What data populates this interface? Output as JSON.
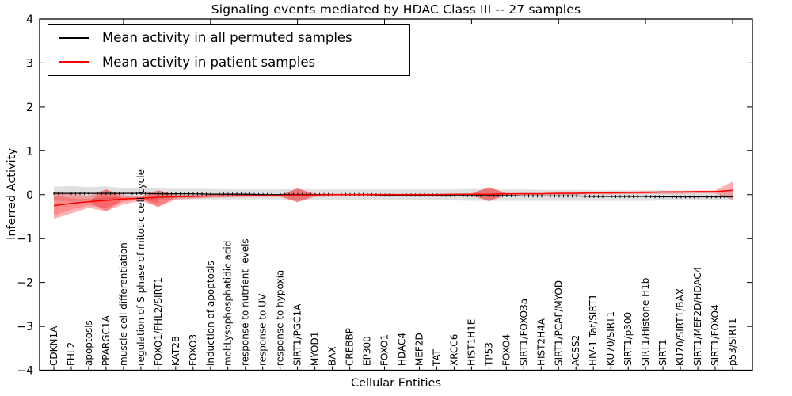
{
  "chart_data": {
    "type": "line",
    "title": "Signaling events mediated by HDAC Class III -- 27 samples",
    "xlabel": "Cellular Entities",
    "ylabel": "Inferred Activity",
    "ylim": [
      -4,
      4
    ],
    "grid": false,
    "legend_position": "upper-left",
    "yticks": [
      {
        "value": 4,
        "label": "4"
      },
      {
        "value": 3,
        "label": "3"
      },
      {
        "value": 2,
        "label": "2"
      },
      {
        "value": 1,
        "label": "1"
      },
      {
        "value": 0,
        "label": "0"
      },
      {
        "value": -1,
        "label": "−1"
      },
      {
        "value": -2,
        "label": "−2"
      },
      {
        "value": -3,
        "label": "−3"
      },
      {
        "value": -4,
        "label": "−4"
      }
    ],
    "categories": [
      "CDKN1A",
      "FHL2",
      "apoptosis",
      "PPARGC1A",
      "muscle cell differentiation",
      "regulation of S phase of mitotic cell cycle",
      "FOXO1/FHL2/SIRT1",
      "KAT2B",
      "FOXO3",
      "induction of apoptosis",
      "mol:Lysophosphatidic acid",
      "response to nutrient levels",
      "response to UV",
      "response to hypoxia",
      "SIRT1/PGC1A",
      "MYOD1",
      "BAX",
      "CREBBP",
      "EP300",
      "FOXO1",
      "HDAC4",
      "MEF2D",
      "TAT",
      "XRCC6",
      "HIST1H1E",
      "TP53",
      "FOXO4",
      "SIRT1/FOXO3a",
      "HIST2H4A",
      "SIRT1/PCAF/MYOD",
      "ACSS2",
      "HIV-1 Tat/SIRT1",
      "KU70/SIRT1",
      "SIRT1/p300",
      "SIRT1/Histone H1b",
      "SIRT1",
      "KU70/SIRT1/BAX",
      "SIRT1/MEF2D/HDAC4",
      "SIRT1/FOXO4",
      "p53/SIRT1"
    ],
    "series": [
      {
        "name": "Mean activity in all permuted samples",
        "color": "#000000",
        "values": [
          0.03,
          0.03,
          0.03,
          0.03,
          0.03,
          0.03,
          0.02,
          0.02,
          0.02,
          0.01,
          0.01,
          0.01,
          0,
          0,
          0,
          0,
          0,
          0,
          0,
          -0.01,
          -0.01,
          -0.01,
          -0.01,
          -0.02,
          -0.02,
          -0.02,
          -0.02,
          -0.03,
          -0.03,
          -0.03,
          -0.03,
          -0.04,
          -0.04,
          -0.04,
          -0.04,
          -0.05,
          -0.05,
          -0.05,
          -0.05,
          -0.05
        ]
      },
      {
        "name": "Mean activity in patient samples",
        "color": "#ff0000",
        "values": [
          -0.25,
          -0.2,
          -0.16,
          -0.13,
          -0.1,
          -0.08,
          -0.06,
          -0.05,
          -0.04,
          -0.03,
          -0.03,
          -0.02,
          -0.02,
          -0.02,
          -0.01,
          -0.01,
          0,
          0,
          0,
          0,
          0,
          0,
          0,
          0.01,
          0.01,
          0.01,
          0.02,
          0.02,
          0.02,
          0.03,
          0.03,
          0.04,
          0.04,
          0.05,
          0.05,
          0.06,
          0.06,
          0.07,
          0.07,
          0.1
        ]
      }
    ],
    "bands": [
      {
        "name": "permuted-samples-band",
        "upper": [
          0.18,
          0.2,
          0.17,
          0.19,
          0.15,
          0.14,
          0.14,
          0.13,
          0.13,
          0.13,
          0.12,
          0.12,
          0.12,
          0.12,
          0.13,
          0.12,
          0.12,
          0.12,
          0.12,
          0.12,
          0.12,
          0.12,
          0.12,
          0.12,
          0.13,
          0.12,
          0.12,
          0.12,
          0.11,
          0.11,
          0.11,
          0.1,
          0.1,
          0.1,
          0.1,
          0.1,
          0.09,
          0.09,
          0.08,
          0.08
        ],
        "lower": [
          -0.13,
          -0.15,
          -0.13,
          -0.15,
          -0.12,
          -0.11,
          -0.12,
          -0.11,
          -0.11,
          -0.11,
          -0.11,
          -0.11,
          -0.11,
          -0.11,
          -0.13,
          -0.12,
          -0.12,
          -0.12,
          -0.12,
          -0.12,
          -0.13,
          -0.13,
          -0.13,
          -0.13,
          -0.14,
          -0.14,
          -0.14,
          -0.14,
          -0.14,
          -0.14,
          -0.14,
          -0.14,
          -0.14,
          -0.14,
          -0.14,
          -0.13,
          -0.13,
          -0.13,
          -0.13,
          -0.12
        ]
      },
      {
        "name": "patient-samples-band",
        "upper": [
          0.06,
          0.02,
          -0.02,
          0.12,
          -0.01,
          -0.03,
          0.1,
          0,
          0,
          0,
          0,
          0,
          0,
          0,
          0.14,
          0.02,
          0.02,
          0.02,
          0.02,
          0.02,
          0.02,
          0.02,
          0.02,
          0.02,
          0.03,
          0.17,
          0.03,
          0.04,
          0.04,
          0.05,
          0.05,
          0.06,
          0.07,
          0.07,
          0.08,
          0.08,
          0.09,
          0.09,
          0.1,
          0.3
        ],
        "lower": [
          -0.55,
          -0.43,
          -0.3,
          -0.38,
          -0.22,
          -0.14,
          -0.28,
          -0.11,
          -0.09,
          -0.07,
          -0.06,
          -0.05,
          -0.05,
          -0.05,
          -0.17,
          -0.05,
          -0.04,
          -0.03,
          -0.03,
          -0.03,
          -0.03,
          -0.03,
          -0.02,
          -0.02,
          -0.02,
          -0.15,
          -0.01,
          -0.01,
          0,
          0,
          0,
          0.01,
          0.01,
          0.01,
          0.02,
          0.02,
          0.02,
          0.03,
          0.03,
          -0.12
        ]
      }
    ],
    "inner_band": {
      "name": "patient-band-dark-left-wedge",
      "upper": [
        -0.02,
        -0.08,
        -0.1,
        -0.06,
        -0.06,
        -0.06,
        -0.04
      ],
      "lower": [
        -0.48,
        -0.34,
        -0.24,
        -0.3,
        -0.16,
        -0.11,
        -0.2
      ]
    },
    "diamonds": [
      {
        "index": 3,
        "top": 0.12,
        "bottom": -0.38
      },
      {
        "index": 6,
        "top": 0.1,
        "bottom": -0.28
      },
      {
        "index": 14,
        "top": 0.14,
        "bottom": -0.17
      },
      {
        "index": 25,
        "top": 0.17,
        "bottom": -0.15
      }
    ],
    "colors": {
      "permuted_line": "#000000",
      "patient_line": "#ff0000",
      "permuted_band": "rgba(115,115,115,0.22)",
      "patient_band": "rgba(255,0,0,0.30)",
      "inner_band": "rgba(255,0,0,0.22)",
      "diamond": "rgba(230,0,0,0.25)",
      "axis": "#000000"
    }
  }
}
